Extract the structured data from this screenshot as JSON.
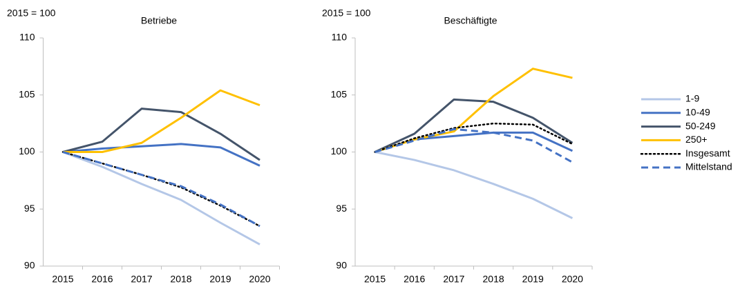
{
  "chart_data": [
    {
      "type": "line",
      "title": "Betriebe",
      "ylabel": "2015 = 100",
      "categories": [
        "2015",
        "2016",
        "2017",
        "2018",
        "2019",
        "2020"
      ],
      "ylim": [
        90,
        110
      ],
      "yticks": [
        90,
        95,
        100,
        105,
        110
      ],
      "grid": false,
      "legend": "right",
      "series": [
        {
          "name": "1-9",
          "color": "#b4c7e7",
          "dash": "solid",
          "values": [
            100,
            98.7,
            97.2,
            95.8,
            93.8,
            91.9
          ]
        },
        {
          "name": "10-49",
          "color": "#4472c4",
          "dash": "solid",
          "values": [
            100,
            100.3,
            100.5,
            100.7,
            100.4,
            98.8
          ]
        },
        {
          "name": "50-249",
          "color": "#44546a",
          "dash": "solid",
          "values": [
            100,
            100.9,
            103.8,
            103.5,
            101.6,
            99.3
          ]
        },
        {
          "name": "250+",
          "color": "#ffc000",
          "dash": "solid",
          "values": [
            100,
            100.0,
            100.8,
            103.0,
            105.4,
            104.1
          ]
        },
        {
          "name": "Insgesamt",
          "color": "#000000",
          "dash": "dotted",
          "values": [
            100,
            99.0,
            98.0,
            96.9,
            95.3,
            93.5
          ]
        },
        {
          "name": "Mittelstand",
          "color": "#4472c4",
          "dash": "dashed",
          "values": [
            100,
            99.0,
            98.0,
            97.0,
            95.4,
            93.5
          ]
        }
      ]
    },
    {
      "type": "line",
      "title": "Beschäftigte",
      "ylabel": "2015 = 100",
      "categories": [
        "2015",
        "2016",
        "2017",
        "2018",
        "2019",
        "2020"
      ],
      "ylim": [
        90,
        110
      ],
      "yticks": [
        90,
        95,
        100,
        105,
        110
      ],
      "grid": false,
      "series": [
        {
          "name": "1-9",
          "color": "#b4c7e7",
          "dash": "solid",
          "values": [
            100,
            99.3,
            98.4,
            97.2,
            95.9,
            94.2
          ]
        },
        {
          "name": "10-49",
          "color": "#4472c4",
          "dash": "solid",
          "values": [
            100,
            101.1,
            101.4,
            101.7,
            101.7,
            100.1
          ]
        },
        {
          "name": "50-249",
          "color": "#44546a",
          "dash": "solid",
          "values": [
            100,
            101.6,
            104.6,
            104.4,
            103.0,
            100.8
          ]
        },
        {
          "name": "250+",
          "color": "#ffc000",
          "dash": "solid",
          "values": [
            100,
            101.1,
            101.8,
            104.9,
            107.3,
            106.5
          ]
        },
        {
          "name": "Insgesamt",
          "color": "#000000",
          "dash": "dotted",
          "values": [
            100,
            101.2,
            102.1,
            102.5,
            102.4,
            100.7
          ]
        },
        {
          "name": "Mittelstand",
          "color": "#4472c4",
          "dash": "dashed",
          "values": [
            100,
            101.0,
            102.0,
            101.7,
            101.0,
            99.1
          ]
        }
      ]
    }
  ]
}
